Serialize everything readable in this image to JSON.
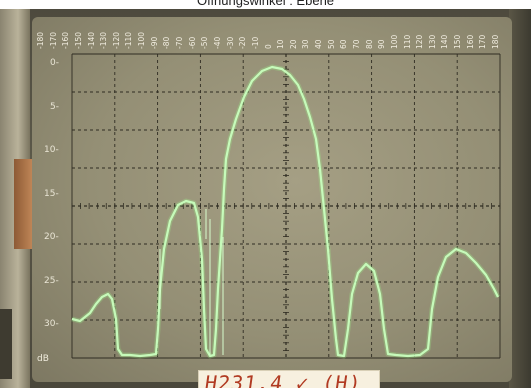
{
  "caption": "Öffnungswinkel : Ebene",
  "angle_labels": [
    "-180",
    "-170",
    "-160",
    "-150",
    "-140",
    "-130",
    "-120",
    "-110",
    "-100",
    "-90",
    "-80",
    "-70",
    "-60",
    "-50",
    "-40",
    "-30",
    "-20",
    "-10",
    "0",
    "10",
    "20",
    "30",
    "40",
    "50",
    "60",
    "70",
    "80",
    "90",
    "100",
    "110",
    "120",
    "130",
    "140",
    "150",
    "160",
    "170",
    "180"
  ],
  "db_labels": [
    "0",
    "5",
    "10",
    "15",
    "20",
    "25",
    "30"
  ],
  "db_unit": "dB",
  "sticker_text": "H231.4 ✓ (H)",
  "colors": {
    "trace": "#d8ffcf",
    "grid": "#2f2c22",
    "screen": "#9c9679"
  }
}
